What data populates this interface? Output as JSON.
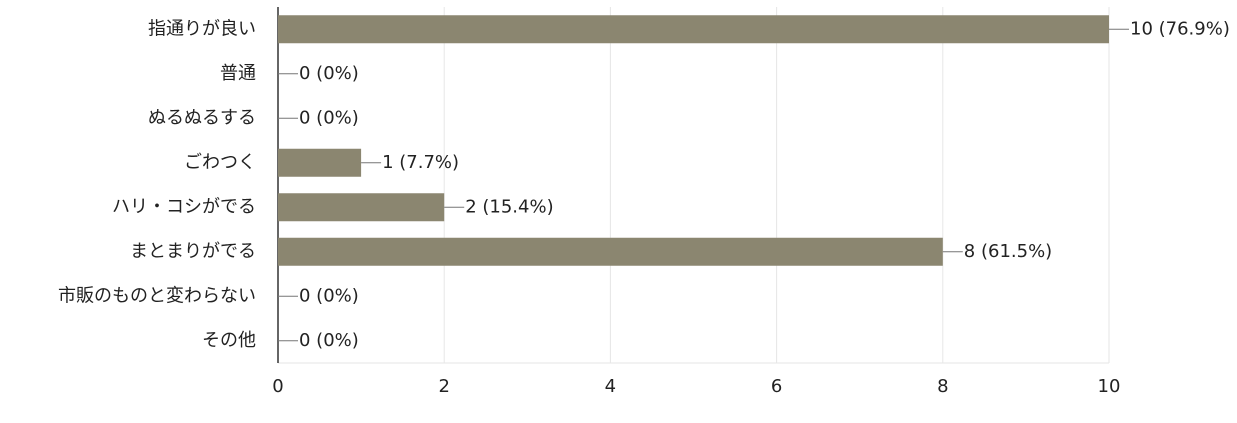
{
  "chart_data": {
    "type": "bar",
    "orientation": "horizontal",
    "categories": [
      "指通りが良い",
      "普通",
      "ぬるぬるする",
      "ごわつく",
      "ハリ・コシがでる",
      "まとまりがでる",
      "市販のものと変わらない",
      "その他"
    ],
    "values": [
      10,
      0,
      0,
      1,
      2,
      8,
      0,
      0
    ],
    "value_labels": [
      "10 (76.9%)",
      "0 (0%)",
      "0 (0%)",
      "1 (7.7%)",
      "2 (15.4%)",
      "8 (61.5%)",
      "0 (0%)",
      "0 (0%)"
    ],
    "color": "#8b8670",
    "xlim": [
      0,
      10
    ],
    "xticks": [
      0,
      2,
      4,
      6,
      8,
      10
    ],
    "grid": true
  }
}
